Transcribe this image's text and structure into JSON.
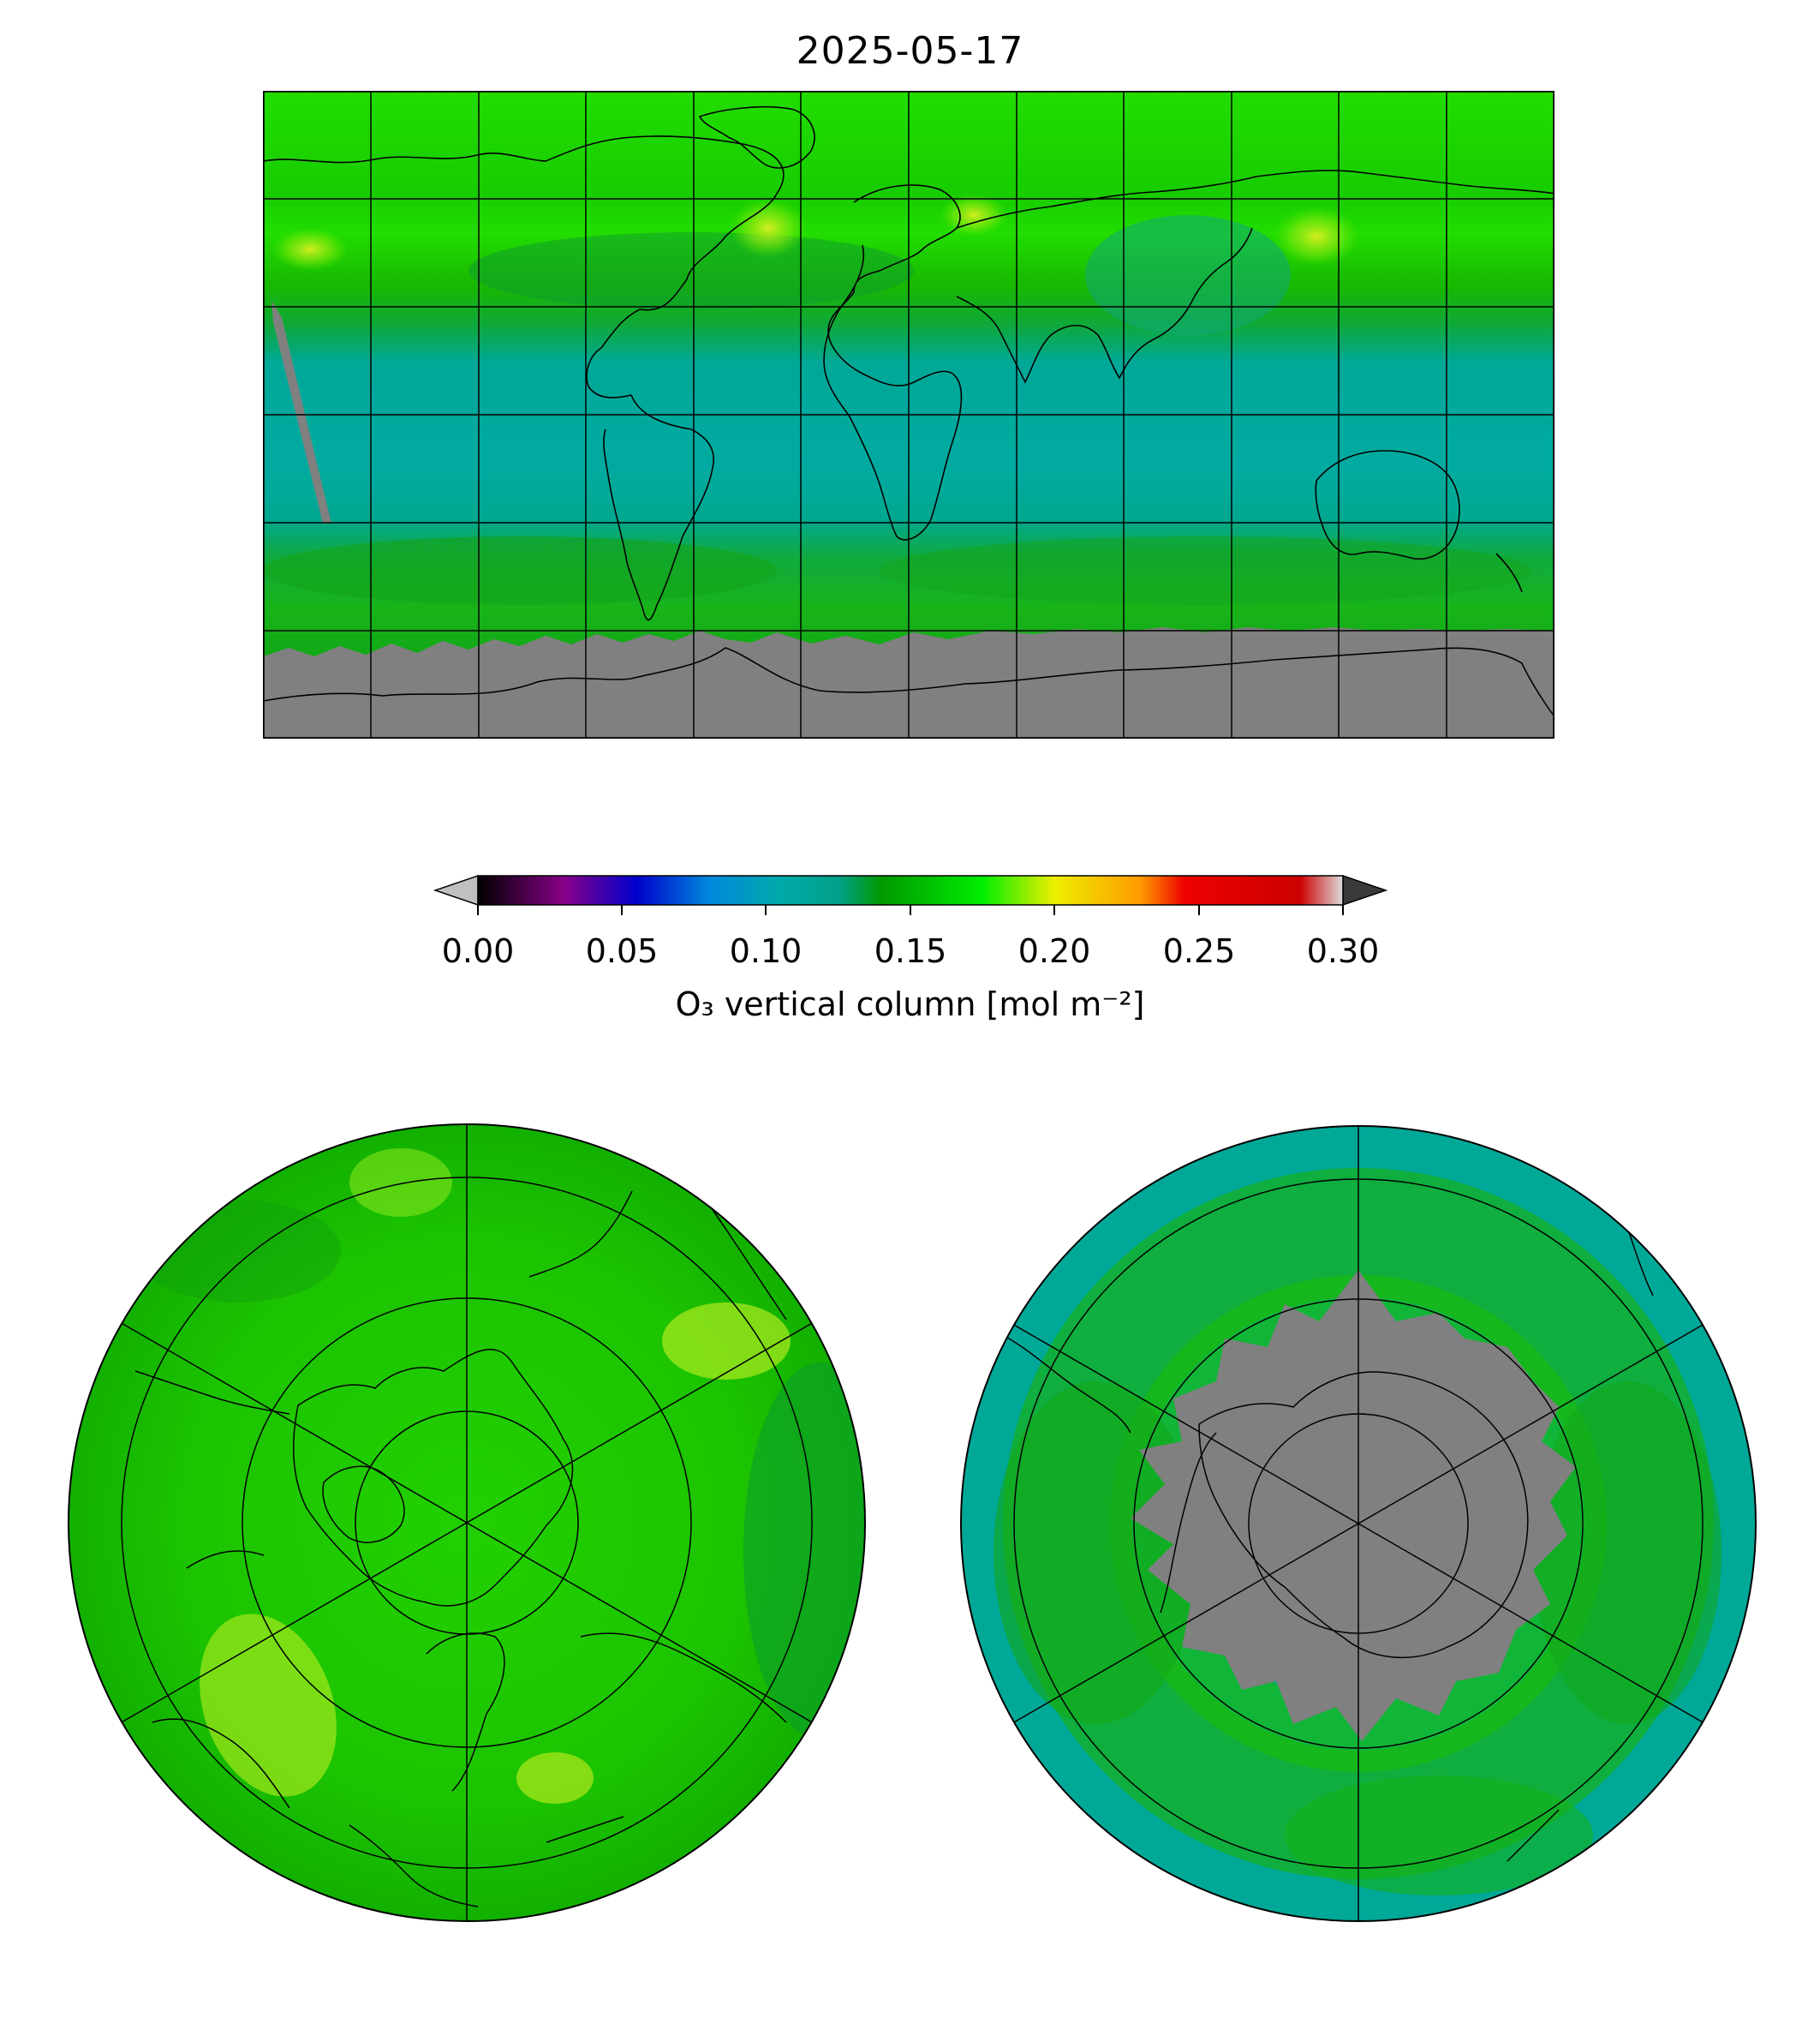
{
  "title": "2025-05-17",
  "colorbar": {
    "label": "O₃ vertical column [mol m⁻²]",
    "vmin": 0.0,
    "vmax": 0.3,
    "extend": "both",
    "under_color": "#c0c0c0",
    "over_color": "#3a3a3a",
    "ticks": [
      {
        "value": 0.0,
        "label": "0.00"
      },
      {
        "value": 0.05,
        "label": "0.05"
      },
      {
        "value": 0.1,
        "label": "0.10"
      },
      {
        "value": 0.15,
        "label": "0.15"
      },
      {
        "value": 0.2,
        "label": "0.20"
      },
      {
        "value": 0.25,
        "label": "0.25"
      },
      {
        "value": 0.3,
        "label": "0.30"
      }
    ],
    "colormap_stops": [
      {
        "value": 0.0,
        "color": "#000000"
      },
      {
        "value": 0.03,
        "color": "#880088"
      },
      {
        "value": 0.055,
        "color": "#0000cc"
      },
      {
        "value": 0.08,
        "color": "#0088dd"
      },
      {
        "value": 0.105,
        "color": "#00aaaa"
      },
      {
        "value": 0.125,
        "color": "#00a088"
      },
      {
        "value": 0.14,
        "color": "#009900"
      },
      {
        "value": 0.175,
        "color": "#00ee00"
      },
      {
        "value": 0.2,
        "color": "#eeee00"
      },
      {
        "value": 0.23,
        "color": "#ff9900"
      },
      {
        "value": 0.245,
        "color": "#ee0000"
      },
      {
        "value": 0.285,
        "color": "#cc0000"
      },
      {
        "value": 0.3,
        "color": "#dddddd"
      }
    ]
  },
  "missing_data_color": "#808080",
  "maps": [
    {
      "name": "global",
      "projection": "plate-carree",
      "grid": true,
      "meridian_step_deg": 30,
      "parallel_step_deg": 30
    },
    {
      "name": "north-polar",
      "projection": "polar-stereographic-north",
      "grid": true
    },
    {
      "name": "south-polar",
      "projection": "polar-stereographic-south",
      "grid": true
    }
  ]
}
